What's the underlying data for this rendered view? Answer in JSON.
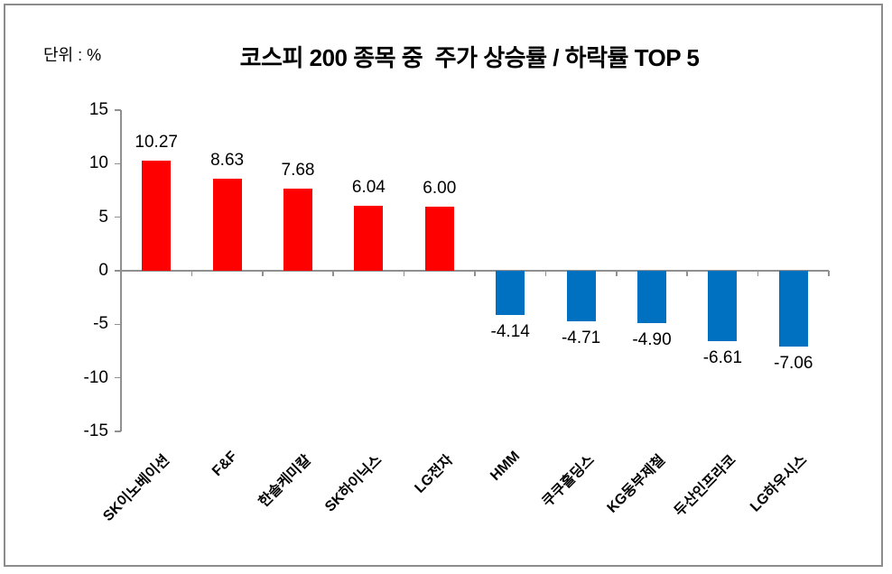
{
  "unit_label": "단위 : %",
  "chart_data": {
    "type": "bar",
    "title": "코스피 200 종목 중  주가 상승률 / 하락률 TOP 5",
    "categories": [
      "SK이노베이션",
      "F&F",
      "한솔케미칼",
      "SK하이닉스",
      "LG전자",
      "HMM",
      "쿠쿠홀딩스",
      "KG동부제철",
      "두산인프라코",
      "LG하우시스"
    ],
    "values": [
      10.27,
      8.63,
      7.68,
      6.04,
      6.0,
      -4.14,
      -4.71,
      -4.9,
      -6.61,
      -7.06
    ],
    "value_labels": [
      "10.27",
      "8.63",
      "7.68",
      "6.04",
      "6.00",
      "-4.14",
      "-4.71",
      "-4.90",
      "-6.61",
      "-7.06"
    ],
    "xlabel": "",
    "ylabel": "",
    "ylim": [
      -15,
      15
    ],
    "ytick_interval": 5,
    "ytick_labels": [
      "15",
      "10",
      "5",
      "0",
      "-5",
      "-10",
      "-15"
    ],
    "grid": false,
    "legend": "none",
    "colors": {
      "positive": "#FF0000",
      "negative": "#0070C0",
      "axis": "#909090",
      "text": "#000000",
      "border": "#8C8C8C"
    }
  }
}
